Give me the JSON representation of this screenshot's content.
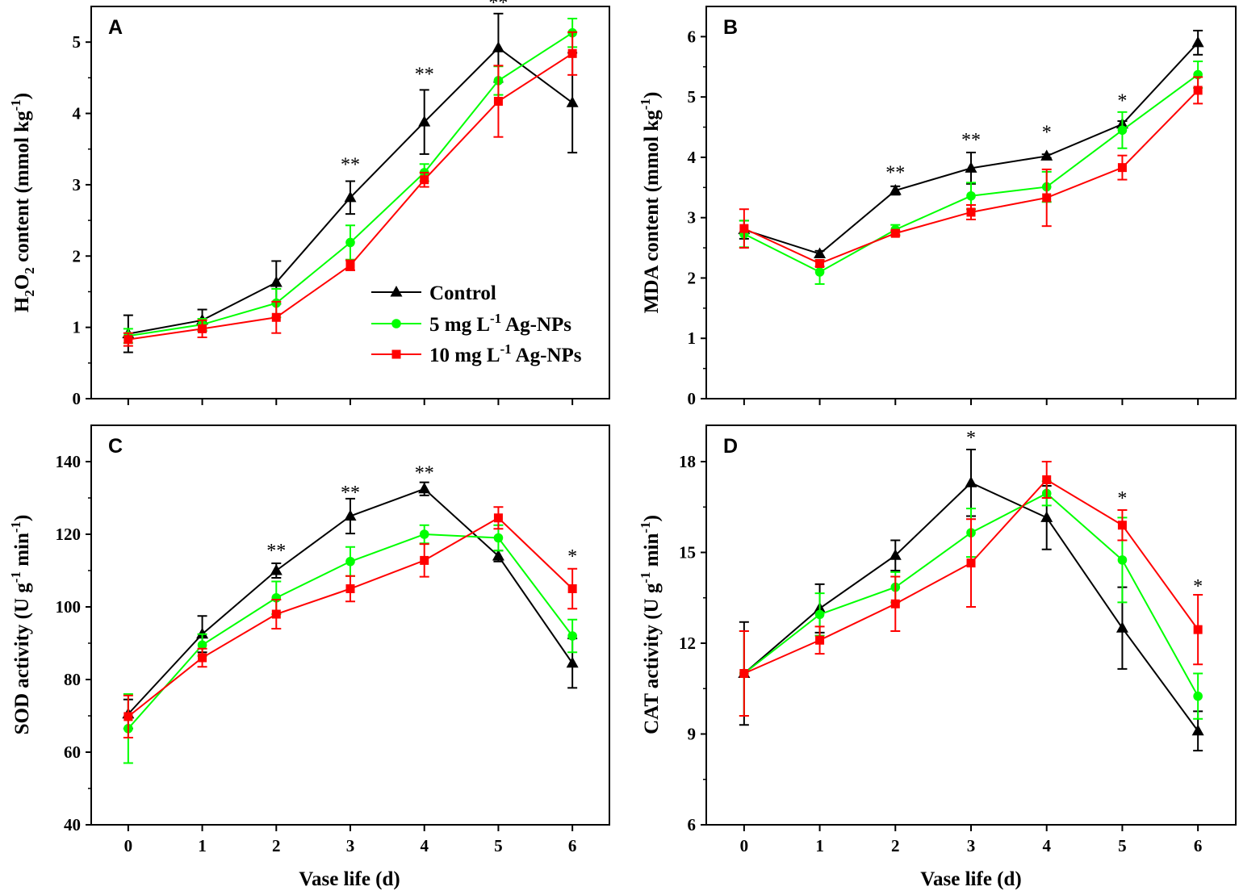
{
  "figure": {
    "x_axis_title": "Vase life (d)",
    "legend": [
      {
        "series": "Control",
        "label": "Control",
        "sup": "",
        "rest": ""
      },
      {
        "series": "5 mg L-1 Ag-NPs",
        "label": "5 mg L",
        "sup": "-1",
        "rest": " Ag-NPs"
      },
      {
        "series": "10 mg L-1 Ag-NPs",
        "label": "10 mg L",
        "sup": "-1",
        "rest": " Ag-NPs"
      }
    ]
  },
  "series_styles": [
    {
      "name": "Control",
      "color": "#000000",
      "marker": "triangle"
    },
    {
      "name": "5 mg L-1 Ag-NPs",
      "color": "#00ff00",
      "marker": "circle"
    },
    {
      "name": "10 mg L-1 Ag-NPs",
      "color": "#ff0000",
      "marker": "square"
    }
  ],
  "chart_data": [
    {
      "panel": "A",
      "type": "line",
      "ylabel": "H2O2 content (mmol kg-1)",
      "ylabel_parts": [
        {
          "t": "H",
          "s": "n"
        },
        {
          "t": "2",
          "s": "sub"
        },
        {
          "t": "O",
          "s": "n"
        },
        {
          "t": "2",
          "s": "sub"
        },
        {
          "t": " content (mmol kg",
          "s": "n"
        },
        {
          "t": "-1",
          "s": "sup"
        },
        {
          "t": ")",
          "s": "n"
        }
      ],
      "xlabel": "Vase life (d)",
      "x": [
        0,
        1,
        2,
        3,
        4,
        5,
        6
      ],
      "xlim": [
        -0.5,
        6.5
      ],
      "ylim": [
        0,
        5.5
      ],
      "yticks": [
        0,
        1,
        2,
        3,
        4,
        5
      ],
      "show_x_labels": false,
      "show_legend": true,
      "series": [
        {
          "name": "Control",
          "values": [
            0.91,
            1.1,
            1.63,
            2.82,
            3.88,
            4.92,
            4.15
          ],
          "errors": [
            0.26,
            0.15,
            0.3,
            0.23,
            0.45,
            0.48,
            0.7
          ]
        },
        {
          "name": "5 mg L-1 Ag-NPs",
          "values": [
            0.88,
            1.04,
            1.34,
            2.19,
            3.17,
            4.46,
            5.13
          ],
          "errors": [
            0.1,
            0.08,
            0.2,
            0.24,
            0.12,
            0.2,
            0.2
          ]
        },
        {
          "name": "10 mg L-1 Ag-NPs",
          "values": [
            0.83,
            0.98,
            1.14,
            1.87,
            3.07,
            4.17,
            4.84
          ],
          "errors": [
            0.09,
            0.12,
            0.22,
            0.07,
            0.1,
            0.5,
            0.3
          ]
        }
      ],
      "significance": [
        {
          "x": 3,
          "label": "**",
          "y": 3.31
        },
        {
          "x": 4,
          "label": "**",
          "y": 4.58
        },
        {
          "x": 5,
          "label": "**",
          "y": 5.58
        }
      ]
    },
    {
      "panel": "B",
      "type": "line",
      "ylabel": "MDA content (mmol kg-1)",
      "ylabel_parts": [
        {
          "t": "MDA content (mmol kg",
          "s": "n"
        },
        {
          "t": "-1",
          "s": "sup"
        },
        {
          "t": ")",
          "s": "n"
        }
      ],
      "xlabel": "Vase life (d)",
      "x": [
        0,
        1,
        2,
        3,
        4,
        5,
        6
      ],
      "xlim": [
        -0.5,
        6.5
      ],
      "ylim": [
        0,
        6.5
      ],
      "yticks": [
        0,
        1,
        2,
        3,
        4,
        5,
        6
      ],
      "show_x_labels": false,
      "show_legend": false,
      "series": [
        {
          "name": "Control",
          "values": [
            2.8,
            2.4,
            3.45,
            3.82,
            4.02,
            4.55,
            5.9
          ],
          "errors": [
            0.15,
            0.05,
            0.07,
            0.26,
            0.03,
            0.05,
            0.2
          ]
        },
        {
          "name": "5 mg L-1 Ag-NPs",
          "values": [
            2.73,
            2.1,
            2.8,
            3.36,
            3.51,
            4.45,
            5.37
          ],
          "errors": [
            0.22,
            0.2,
            0.08,
            0.22,
            0.25,
            0.3,
            0.22
          ]
        },
        {
          "name": "10 mg L-1 Ag-NPs",
          "values": [
            2.82,
            2.24,
            2.74,
            3.09,
            3.33,
            3.83,
            5.11
          ],
          "errors": [
            0.32,
            0.05,
            0.04,
            0.12,
            0.47,
            0.2,
            0.22
          ]
        }
      ],
      "significance": [
        {
          "x": 2,
          "label": "**",
          "y": 3.78
        },
        {
          "x": 3,
          "label": "**",
          "y": 4.32
        },
        {
          "x": 4,
          "label": "*",
          "y": 4.45
        },
        {
          "x": 5,
          "label": "*",
          "y": 4.97
        }
      ]
    },
    {
      "panel": "C",
      "type": "line",
      "ylabel": "SOD activity (U g-1 min-1)",
      "ylabel_parts": [
        {
          "t": "SOD activity (U g",
          "s": "n"
        },
        {
          "t": "-1",
          "s": "sup"
        },
        {
          "t": " min",
          "s": "n"
        },
        {
          "t": "-1",
          "s": "sup"
        },
        {
          "t": ")",
          "s": "n"
        }
      ],
      "xlabel": "Vase life (d)",
      "x": [
        0,
        1,
        2,
        3,
        4,
        5,
        6
      ],
      "xlim": [
        -0.5,
        6.5
      ],
      "ylim": [
        40,
        150
      ],
      "yticks": [
        40,
        60,
        80,
        100,
        120,
        140
      ],
      "show_x_labels": true,
      "show_legend": false,
      "series": [
        {
          "name": "Control",
          "values": [
            70.5,
            92.5,
            110.0,
            125.0,
            132.5,
            114.0,
            84.5
          ],
          "errors": [
            4.0,
            5.0,
            2.0,
            4.8,
            1.8,
            1.5,
            6.8
          ]
        },
        {
          "name": "5 mg L-1 Ag-NPs",
          "values": [
            66.5,
            89.5,
            102.5,
            112.5,
            120.0,
            119.0,
            92.0
          ],
          "errors": [
            9.5,
            3.0,
            4.5,
            4.0,
            2.5,
            3.5,
            4.5
          ]
        },
        {
          "name": "10 mg L-1 Ag-NPs",
          "values": [
            69.8,
            86.0,
            98.0,
            105.0,
            112.8,
            124.5,
            105.0
          ],
          "errors": [
            5.8,
            2.5,
            4.0,
            3.5,
            4.5,
            3.0,
            5.5
          ]
        }
      ],
      "significance": [
        {
          "x": 2,
          "label": "**",
          "y": 116.0
        },
        {
          "x": 3,
          "label": "**",
          "y": 132.0
        },
        {
          "x": 4,
          "label": "**",
          "y": 137.5
        },
        {
          "x": 6,
          "label": "*",
          "y": 114.5
        }
      ]
    },
    {
      "panel": "D",
      "type": "line",
      "ylabel": "CAT activity (U g-1 min-1)",
      "ylabel_parts": [
        {
          "t": "CAT activity (U g",
          "s": "n"
        },
        {
          "t": "-1",
          "s": "sup"
        },
        {
          "t": " min",
          "s": "n"
        },
        {
          "t": "-1",
          "s": "sup"
        },
        {
          "t": ")",
          "s": "n"
        }
      ],
      "xlabel": "Vase life (d)",
      "x": [
        0,
        1,
        2,
        3,
        4,
        5,
        6
      ],
      "xlim": [
        -0.5,
        6.5
      ],
      "ylim": [
        6,
        19.2
      ],
      "yticks": [
        6,
        9,
        12,
        15,
        18
      ],
      "show_x_labels": true,
      "show_legend": false,
      "series": [
        {
          "name": "Control",
          "values": [
            11.0,
            13.15,
            14.9,
            17.3,
            16.15,
            12.5,
            9.1
          ],
          "errors": [
            1.7,
            0.8,
            0.5,
            1.1,
            1.05,
            1.35,
            0.65
          ]
        },
        {
          "name": "5 mg L-1 Ag-NPs",
          "values": [
            11.0,
            12.95,
            13.85,
            15.65,
            16.95,
            14.75,
            10.25
          ],
          "errors": [
            1.4,
            0.7,
            0.5,
            0.8,
            0.4,
            1.4,
            0.75
          ]
        },
        {
          "name": "10 mg L-1 Ag-NPs",
          "values": [
            11.0,
            12.1,
            13.3,
            14.65,
            17.4,
            15.9,
            12.45
          ],
          "errors": [
            1.4,
            0.45,
            0.9,
            1.45,
            0.6,
            0.5,
            1.15
          ]
        }
      ],
      "significance": [
        {
          "x": 3,
          "label": "*",
          "y": 18.85
        },
        {
          "x": 5,
          "label": "*",
          "y": 16.85
        },
        {
          "x": 6,
          "label": "*",
          "y": 13.95
        }
      ]
    }
  ]
}
